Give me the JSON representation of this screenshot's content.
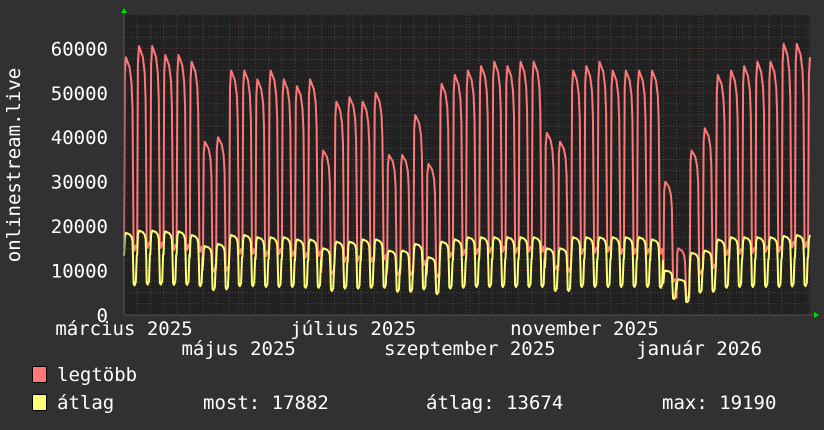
{
  "chart_data": {
    "type": "line",
    "title": "",
    "ylabel": "onlinestream.live",
    "xlabel": "",
    "xlim": [
      "2025-03-01",
      "2026-03-01"
    ],
    "ylim": [
      0,
      67500
    ],
    "grid": true,
    "y_ticks": [
      0,
      10000,
      20000,
      30000,
      40000,
      50000,
      60000
    ],
    "y_tick_labels": [
      "0",
      "10000",
      "20000",
      "30000",
      "40000",
      "50000",
      "60000"
    ],
    "x_ticks": [
      "2025-03-01",
      "2025-05-01",
      "2025-07-01",
      "2025-09-01",
      "2025-11-01",
      "2026-01-01"
    ],
    "x_tick_labels": [
      "március 2025",
      "május 2025",
      "július 2025",
      "szeptember 2025",
      "november 2025",
      "január 2026"
    ],
    "x_resolution": "weekly peak values",
    "series": [
      {
        "name": "legtöbb",
        "color": "#ff7777",
        "weekly_peaks": [
          58000,
          60500,
          60500,
          58500,
          58500,
          57000,
          39000,
          40000,
          55000,
          55000,
          53000,
          55000,
          53000,
          51500,
          53000,
          37000,
          48000,
          49000,
          48000,
          50000,
          36000,
          36000,
          45000,
          34000,
          52000,
          54000,
          55000,
          56000,
          57000,
          56000,
          57000,
          57000,
          41000,
          39000,
          55000,
          56000,
          57000,
          55000,
          55000,
          55000,
          55000,
          30000,
          15000,
          37000,
          42000,
          54000,
          55000,
          56000,
          57000,
          57000,
          61000,
          61000,
          58000
        ]
      },
      {
        "name": "átlag",
        "color": "#ffff77",
        "weekly_peaks": [
          18500,
          19000,
          19000,
          18800,
          18800,
          18000,
          15500,
          16000,
          18000,
          18000,
          17500,
          17500,
          17500,
          17000,
          17000,
          15000,
          16500,
          16500,
          17000,
          17000,
          14500,
          14500,
          16000,
          13000,
          16500,
          17000,
          17500,
          17500,
          17500,
          17500,
          17500,
          17500,
          15000,
          15000,
          17500,
          17500,
          17500,
          17500,
          17500,
          17500,
          17000,
          10000,
          8000,
          14000,
          14500,
          17000,
          17500,
          17500,
          17500,
          17500,
          17800,
          18000,
          18000
        ]
      }
    ]
  },
  "legend": {
    "items": [
      {
        "label": "legtöbb",
        "color": "#ff7777"
      },
      {
        "label": "átlag",
        "color": "#ffff77"
      }
    ],
    "stats": {
      "most": "most: 17882",
      "atlag": "átlag: 13674",
      "max": "max: 19190"
    }
  }
}
